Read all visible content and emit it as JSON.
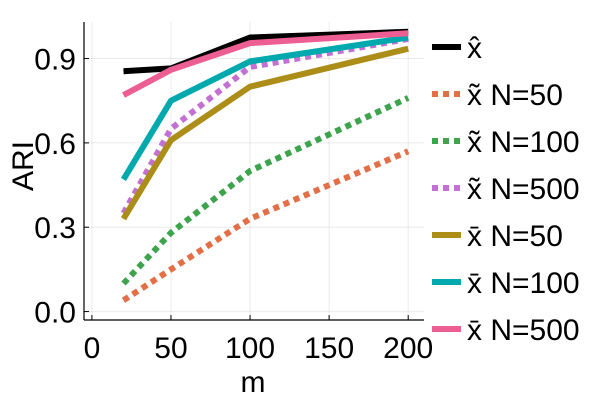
{
  "chart_data": {
    "type": "line",
    "title": "",
    "xlabel": "m",
    "ylabel": "ARI",
    "xlim": [
      -5,
      210
    ],
    "ylim": [
      -0.03,
      1.03
    ],
    "xticks": [
      0,
      50,
      100,
      150,
      200
    ],
    "xtick_labels": [
      "0",
      "50",
      "100",
      "150",
      "200"
    ],
    "yticks": [
      0.0,
      0.3,
      0.6,
      0.9
    ],
    "ytick_labels": [
      "0.0",
      "0.3",
      "0.6",
      "0.9"
    ],
    "grid": true,
    "legend_position": "right",
    "x": [
      20,
      50,
      100,
      200
    ],
    "series": [
      {
        "name": "x̂",
        "label_math": "x̂",
        "label_rest": "",
        "color": "#000000",
        "style": "solid",
        "values": [
          0.855,
          0.865,
          0.975,
          0.995
        ]
      },
      {
        "name": "x̃ N=50",
        "label_math": "x̃",
        "label_rest": " N=50",
        "color": "#e36f47",
        "style": "dotted",
        "values": [
          0.04,
          0.15,
          0.33,
          0.57
        ]
      },
      {
        "name": "x̃ N=100",
        "label_math": "x̃",
        "label_rest": " N=100",
        "color": "#3da44d",
        "style": "dotted",
        "values": [
          0.1,
          0.28,
          0.5,
          0.76
        ]
      },
      {
        "name": "x̃ N=500",
        "label_math": "x̃",
        "label_rest": " N=500",
        "color": "#c271d2",
        "style": "dotted",
        "values": [
          0.35,
          0.65,
          0.87,
          0.97
        ]
      },
      {
        "name": "x̄ N=50",
        "label_math": "x̄",
        "label_rest": " N=50",
        "color": "#ac8d18",
        "style": "solid",
        "values": [
          0.33,
          0.61,
          0.8,
          0.935
        ]
      },
      {
        "name": "x̄ N=100",
        "label_math": "x̄",
        "label_rest": " N=100",
        "color": "#00a9ad",
        "style": "solid",
        "values": [
          0.47,
          0.75,
          0.89,
          0.975
        ]
      },
      {
        "name": "x̄ N=500",
        "label_math": "x̄",
        "label_rest": " N=500",
        "color": "#ed5e93",
        "style": "solid",
        "values": [
          0.77,
          0.86,
          0.955,
          0.99
        ]
      }
    ]
  }
}
